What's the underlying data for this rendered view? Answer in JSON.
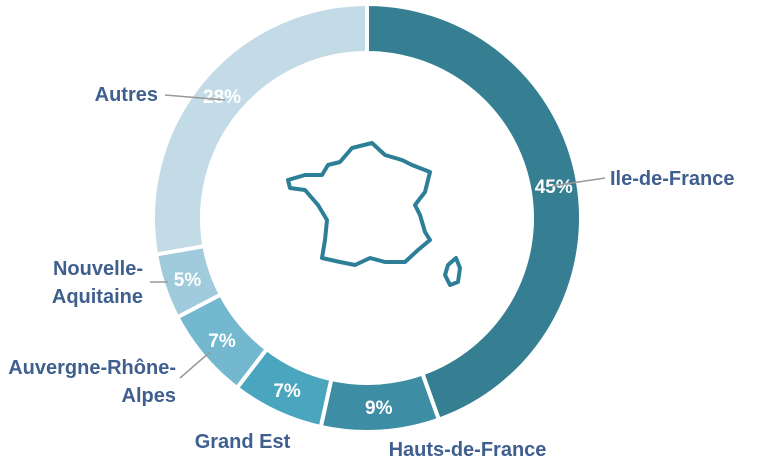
{
  "chart_data": {
    "type": "donut",
    "categories": [
      "Ile-de-France",
      "Hauts-de-France",
      "Grand Est",
      "Auvergne-Rhône-Alpes",
      "Nouvelle-Aquitaine",
      "Autres"
    ],
    "values": [
      45,
      9,
      7,
      7,
      5,
      28
    ],
    "value_labels": [
      "45%",
      "9%",
      "7%",
      "7%",
      "5%",
      "28%"
    ],
    "colors": [
      "#367f93",
      "#3d8ea4",
      "#4aa5bf",
      "#74b8d0",
      "#a0cbdc",
      "#c3dbe6"
    ],
    "label_color": "#3f5f8f"
  }
}
